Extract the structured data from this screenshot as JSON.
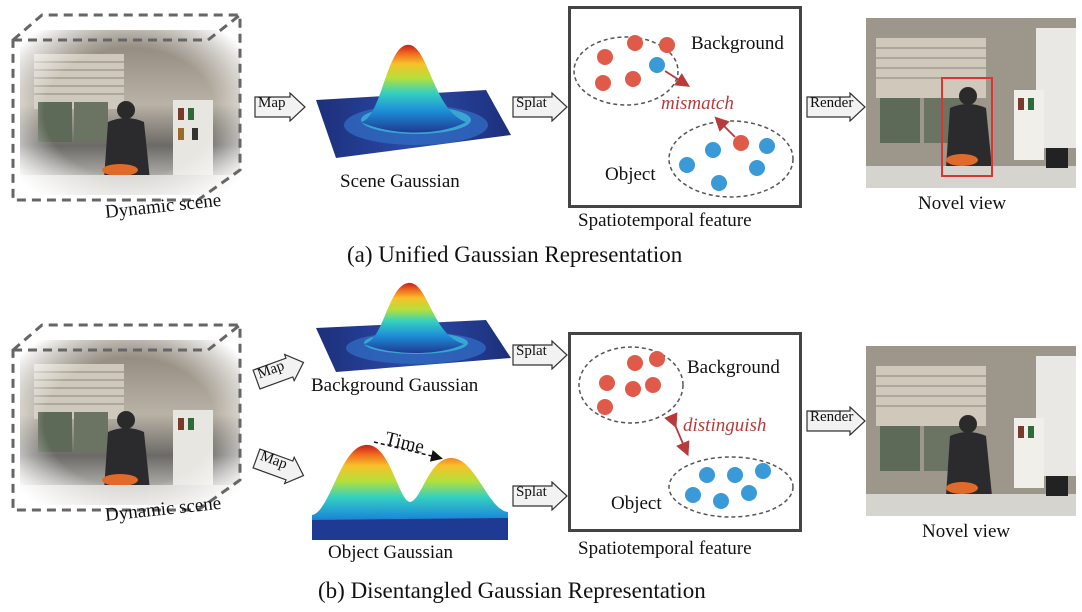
{
  "panel_a": {
    "dynamic_scene_label": "Dynamic scene",
    "map_label": "Map",
    "scene_gaussian_label": "Scene Gaussian",
    "splat_label": "Splat",
    "background_label": "Background",
    "mismatch_label": "mismatch",
    "object_label": "Object",
    "feature_label": "Spatiotemporal feature",
    "render_label": "Render",
    "novel_view_label": "Novel view",
    "caption": "(a) Unified Gaussian Representation"
  },
  "panel_b": {
    "dynamic_scene_label": "Dynamic scene",
    "map_top_label": "Map",
    "map_bottom_label": "Map",
    "background_gaussian_label": "Background Gaussian",
    "time_label": "Time",
    "object_gaussian_label": "Object Gaussian",
    "splat_top_label": "Splat",
    "splat_bottom_label": "Splat",
    "background_label": "Background",
    "distinguish_label": "distinguish",
    "object_label": "Object",
    "feature_label": "Spatiotemporal feature",
    "render_label": "Render",
    "novel_view_label": "Novel view",
    "caption": "(b) Disentangled Gaussian Representation"
  },
  "colors": {
    "background_dot": "#e05a4a",
    "object_dot": "#3a9ad8",
    "annotation_red": "#b83a3a",
    "box_border": "#444444"
  }
}
